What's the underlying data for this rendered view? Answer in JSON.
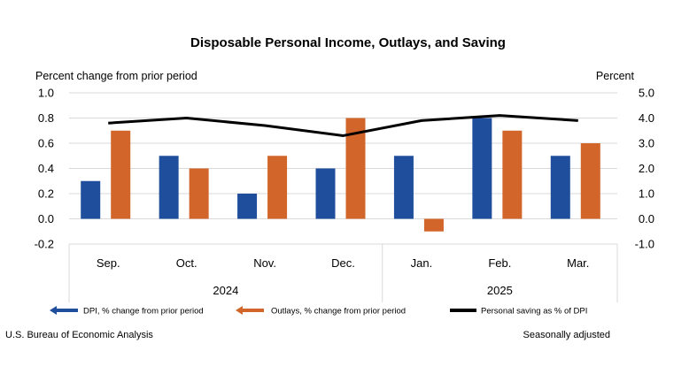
{
  "chart_data": {
    "type": "bar",
    "title": "Disposable Personal Income, Outlays, and Saving",
    "left_axis_label": "Percent change from prior period",
    "right_axis_label": "Percent",
    "left_ylim": [
      -0.2,
      1.0
    ],
    "left_ticks": [
      "1.0",
      "0.8",
      "0.6",
      "0.4",
      "0.2",
      "0.0",
      "-0.2"
    ],
    "right_ylim": [
      -1.0,
      5.0
    ],
    "right_ticks": [
      "5.0",
      "4.0",
      "3.0",
      "2.0",
      "1.0",
      "0.0",
      "-1.0"
    ],
    "categories": [
      "Sep.",
      "Oct.",
      "Nov.",
      "Dec.",
      "Jan.",
      "Feb.",
      "Mar."
    ],
    "years": [
      {
        "label": "2024",
        "span": [
          0,
          3
        ]
      },
      {
        "label": "2025",
        "span": [
          4,
          6
        ]
      }
    ],
    "series": [
      {
        "name": "DPI, % change from prior period",
        "type": "bar",
        "axis": "left",
        "color": "#1f4e9c",
        "values": [
          0.3,
          0.5,
          0.2,
          0.4,
          0.5,
          0.8,
          0.5
        ]
      },
      {
        "name": "Outlays, % change from prior period",
        "type": "bar",
        "axis": "left",
        "color": "#d2662a",
        "values": [
          0.7,
          0.4,
          0.5,
          0.8,
          -0.1,
          0.7,
          0.6
        ]
      },
      {
        "name": "Personal saving as % of DPI",
        "type": "line",
        "axis": "right",
        "color": "#000000",
        "values": [
          3.8,
          4.0,
          3.7,
          3.3,
          3.9,
          4.1,
          3.9
        ]
      }
    ],
    "grid": true,
    "legend_position": "bottom"
  },
  "footer": {
    "source": "U.S. Bureau of Economic Analysis",
    "note": "Seasonally adjusted"
  }
}
